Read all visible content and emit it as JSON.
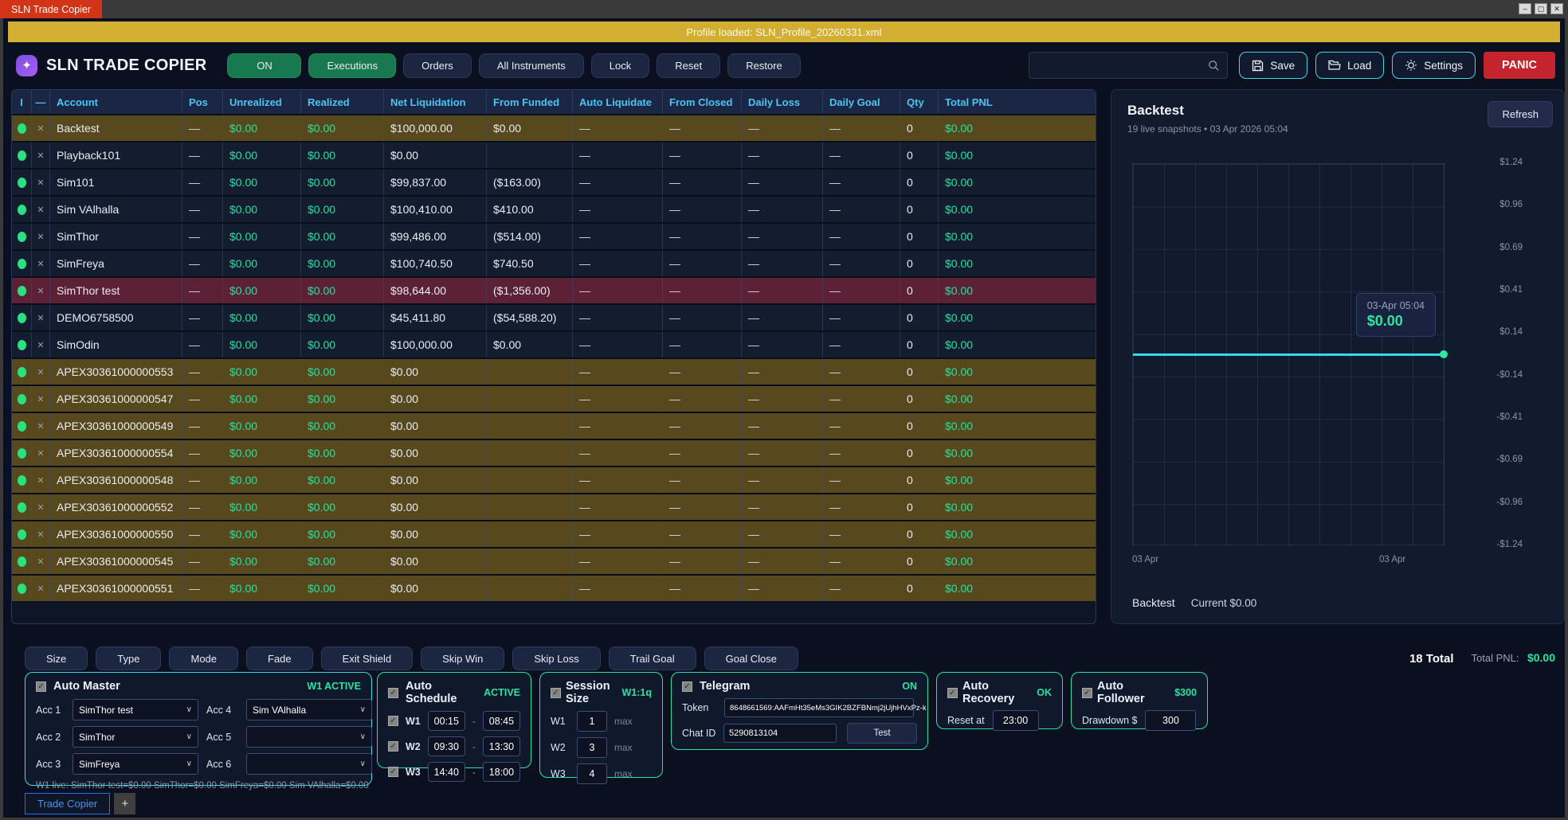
{
  "titlebar": {
    "app_tab": "SLN Trade Copier",
    "minimize": "–",
    "maximize": "▢",
    "close": "✕"
  },
  "banner": {
    "text": "Profile loaded: SLN_Profile_20260331.xml"
  },
  "toolbar": {
    "logo_glyph": "✦",
    "title": "SLN TRADE COPIER",
    "on": "ON",
    "executions": "Executions",
    "orders": "Orders",
    "all_instruments": "All Instruments",
    "lock": "Lock",
    "reset": "Reset",
    "restore": "Restore",
    "save": "Save",
    "load": "Load",
    "settings": "Settings",
    "panic": "PANIC"
  },
  "table": {
    "columns": [
      "I",
      "—",
      "Account",
      "Pos",
      "Unrealized",
      "Realized",
      "Net Liquidation",
      "From Funded",
      "Auto Liquidate",
      "From Closed",
      "Daily Loss",
      "Daily Goal",
      "Qty",
      "Total PNL"
    ],
    "close_glyph": "✕",
    "rows": [
      {
        "name": "Backtest",
        "pos": "—",
        "unrealized": "$0.00",
        "realized": "$0.00",
        "net_liq": "$100,000.00",
        "from_funded": "$0.00",
        "auto_liq": "—",
        "from_closed": "—",
        "daily_loss": "—",
        "daily_goal": "—",
        "qty": "0",
        "total_pnl": "$0.00",
        "highlight": "olive"
      },
      {
        "name": "Playback101",
        "pos": "—",
        "unrealized": "$0.00",
        "realized": "$0.00",
        "net_liq": "$0.00",
        "from_funded": "",
        "auto_liq": "—",
        "from_closed": "—",
        "daily_loss": "—",
        "daily_goal": "—",
        "qty": "0",
        "total_pnl": "$0.00",
        "highlight": "none"
      },
      {
        "name": "Sim101",
        "pos": "—",
        "unrealized": "$0.00",
        "realized": "$0.00",
        "net_liq": "$99,837.00",
        "from_funded": "($163.00)",
        "auto_liq": "—",
        "from_closed": "—",
        "daily_loss": "—",
        "daily_goal": "—",
        "qty": "0",
        "total_pnl": "$0.00",
        "highlight": "none"
      },
      {
        "name": "Sim VAlhalla",
        "pos": "—",
        "unrealized": "$0.00",
        "realized": "$0.00",
        "net_liq": "$100,410.00",
        "from_funded": "$410.00",
        "auto_liq": "—",
        "from_closed": "—",
        "daily_loss": "—",
        "daily_goal": "—",
        "qty": "0",
        "total_pnl": "$0.00",
        "highlight": "none"
      },
      {
        "name": "SimThor",
        "pos": "—",
        "unrealized": "$0.00",
        "realized": "$0.00",
        "net_liq": "$99,486.00",
        "from_funded": "($514.00)",
        "auto_liq": "—",
        "from_closed": "—",
        "daily_loss": "—",
        "daily_goal": "—",
        "qty": "0",
        "total_pnl": "$0.00",
        "highlight": "none"
      },
      {
        "name": "SimFreya",
        "pos": "—",
        "unrealized": "$0.00",
        "realized": "$0.00",
        "net_liq": "$100,740.50",
        "from_funded": "$740.50",
        "auto_liq": "—",
        "from_closed": "—",
        "daily_loss": "—",
        "daily_goal": "—",
        "qty": "0",
        "total_pnl": "$0.00",
        "highlight": "none"
      },
      {
        "name": "SimThor test",
        "pos": "—",
        "unrealized": "$0.00",
        "realized": "$0.00",
        "net_liq": "$98,644.00",
        "from_funded": "($1,356.00)",
        "auto_liq": "—",
        "from_closed": "—",
        "daily_loss": "—",
        "daily_goal": "—",
        "qty": "0",
        "total_pnl": "$0.00",
        "highlight": "maroon"
      },
      {
        "name": "DEMO6758500",
        "pos": "—",
        "unrealized": "$0.00",
        "realized": "$0.00",
        "net_liq": "$45,411.80",
        "from_funded": "($54,588.20)",
        "auto_liq": "—",
        "from_closed": "—",
        "daily_loss": "—",
        "daily_goal": "—",
        "qty": "0",
        "total_pnl": "$0.00",
        "highlight": "none"
      },
      {
        "name": "SimOdin",
        "pos": "—",
        "unrealized": "$0.00",
        "realized": "$0.00",
        "net_liq": "$100,000.00",
        "from_funded": "$0.00",
        "auto_liq": "—",
        "from_closed": "—",
        "daily_loss": "—",
        "daily_goal": "—",
        "qty": "0",
        "total_pnl": "$0.00",
        "highlight": "none"
      },
      {
        "name": "APEX30361000000553",
        "pos": "—",
        "unrealized": "$0.00",
        "realized": "$0.00",
        "net_liq": "$0.00",
        "from_funded": "",
        "auto_liq": "—",
        "from_closed": "—",
        "daily_loss": "—",
        "daily_goal": "—",
        "qty": "0",
        "total_pnl": "$0.00",
        "highlight": "olive"
      },
      {
        "name": "APEX30361000000547",
        "pos": "—",
        "unrealized": "$0.00",
        "realized": "$0.00",
        "net_liq": "$0.00",
        "from_funded": "",
        "auto_liq": "—",
        "from_closed": "—",
        "daily_loss": "—",
        "daily_goal": "—",
        "qty": "0",
        "total_pnl": "$0.00",
        "highlight": "olive"
      },
      {
        "name": "APEX30361000000549",
        "pos": "—",
        "unrealized": "$0.00",
        "realized": "$0.00",
        "net_liq": "$0.00",
        "from_funded": "",
        "auto_liq": "—",
        "from_closed": "—",
        "daily_loss": "—",
        "daily_goal": "—",
        "qty": "0",
        "total_pnl": "$0.00",
        "highlight": "olive"
      },
      {
        "name": "APEX30361000000554",
        "pos": "—",
        "unrealized": "$0.00",
        "realized": "$0.00",
        "net_liq": "$0.00",
        "from_funded": "",
        "auto_liq": "—",
        "from_closed": "—",
        "daily_loss": "—",
        "daily_goal": "—",
        "qty": "0",
        "total_pnl": "$0.00",
        "highlight": "olive"
      },
      {
        "name": "APEX30361000000548",
        "pos": "—",
        "unrealized": "$0.00",
        "realized": "$0.00",
        "net_liq": "$0.00",
        "from_funded": "",
        "auto_liq": "—",
        "from_closed": "—",
        "daily_loss": "—",
        "daily_goal": "—",
        "qty": "0",
        "total_pnl": "$0.00",
        "highlight": "olive"
      },
      {
        "name": "APEX30361000000552",
        "pos": "—",
        "unrealized": "$0.00",
        "realized": "$0.00",
        "net_liq": "$0.00",
        "from_funded": "",
        "auto_liq": "—",
        "from_closed": "—",
        "daily_loss": "—",
        "daily_goal": "—",
        "qty": "0",
        "total_pnl": "$0.00",
        "highlight": "olive"
      },
      {
        "name": "APEX30361000000550",
        "pos": "—",
        "unrealized": "$0.00",
        "realized": "$0.00",
        "net_liq": "$0.00",
        "from_funded": "",
        "auto_liq": "—",
        "from_closed": "—",
        "daily_loss": "—",
        "daily_goal": "—",
        "qty": "0",
        "total_pnl": "$0.00",
        "highlight": "olive"
      },
      {
        "name": "APEX30361000000545",
        "pos": "—",
        "unrealized": "$0.00",
        "realized": "$0.00",
        "net_liq": "$0.00",
        "from_funded": "",
        "auto_liq": "—",
        "from_closed": "—",
        "daily_loss": "—",
        "daily_goal": "—",
        "qty": "0",
        "total_pnl": "$0.00",
        "highlight": "olive"
      },
      {
        "name": "APEX30361000000551",
        "pos": "—",
        "unrealized": "$0.00",
        "realized": "$0.00",
        "net_liq": "$0.00",
        "from_funded": "",
        "auto_liq": "—",
        "from_closed": "—",
        "daily_loss": "—",
        "daily_goal": "—",
        "qty": "0",
        "total_pnl": "$0.00",
        "highlight": "olive"
      }
    ]
  },
  "chart_panel": {
    "title": "Backtest",
    "subtitle": "19 live snapshots • 03 Apr 2026 05:04",
    "refresh": "Refresh",
    "tooltip_time": "03-Apr 05:04",
    "tooltip_value": "$0.00",
    "legend_name": "Backtest",
    "legend_current": "Current $0.00"
  },
  "chart_data": {
    "type": "line",
    "title": "Backtest",
    "snapshots": 19,
    "series": [
      {
        "name": "Backtest",
        "values": [
          0,
          0,
          0,
          0,
          0,
          0,
          0,
          0,
          0,
          0,
          0,
          0,
          0,
          0,
          0,
          0,
          0,
          0,
          0
        ]
      }
    ],
    "x_labels": [
      "03 Apr",
      "03 Apr"
    ],
    "y_ticks": [
      "$1.24",
      "$0.96",
      "$0.69",
      "$0.41",
      "$0.14",
      "-$0.14",
      "-$0.41",
      "-$0.69",
      "-$0.96",
      "-$1.24"
    ],
    "ylim": [
      -1.24,
      1.24
    ],
    "grid": true,
    "line_color": "#3adbe9",
    "marker_color": "#2ee6a0",
    "legend_position": "bottom",
    "tooltip": {
      "time": "03-Apr 05:04",
      "value": "$0.00"
    }
  },
  "footer": {
    "buttons": [
      "Size",
      "Type",
      "Mode",
      "Fade",
      "Exit Shield",
      "Skip Win",
      "Skip Loss",
      "Trail Goal",
      "Goal Close"
    ],
    "total": "18 Total",
    "total_pnl_label": "Total PNL:",
    "total_pnl_value": "$0.00"
  },
  "panels": {
    "auto_master": {
      "title": "Auto Master",
      "status": "W1 ACTIVE",
      "accounts": [
        {
          "label": "Acc 1",
          "value": "SimThor test"
        },
        {
          "label": "Acc 4",
          "value": "Sim VAlhalla"
        },
        {
          "label": "Acc 2",
          "value": "SimThor"
        },
        {
          "label": "Acc 5",
          "value": ""
        },
        {
          "label": "Acc 3",
          "value": "SimFreya"
        },
        {
          "label": "Acc 6",
          "value": ""
        }
      ],
      "footer": "W1 live: SimThor test=$0.00  SimThor=$0.00  SimFreya=$0.00  Sim VAlhalla=$0.00"
    },
    "auto_schedule": {
      "title": "Auto Schedule",
      "status": "ACTIVE",
      "windows": [
        {
          "label": "W1",
          "start": "00:15",
          "end": "08:45"
        },
        {
          "label": "W2",
          "start": "09:30",
          "end": "13:30"
        },
        {
          "label": "W3",
          "start": "14:40",
          "end": "18:00"
        }
      ]
    },
    "session_size": {
      "title": "Session Size",
      "status": "W1:1q",
      "rows": [
        {
          "label": "W1",
          "value": "1",
          "suffix": "max"
        },
        {
          "label": "W2",
          "value": "3",
          "suffix": "max"
        },
        {
          "label": "W3",
          "value": "4",
          "suffix": "max"
        }
      ]
    },
    "telegram": {
      "title": "Telegram",
      "status": "ON",
      "token_label": "Token",
      "token": "8648661569:AAFmHt35eMs3GIK2BZFBNmj2jUjhHVxPz-k",
      "chat_label": "Chat ID",
      "chat_id": "5290813104",
      "test": "Test"
    },
    "auto_recovery": {
      "title": "Auto Recovery",
      "status": "OK",
      "label": "Reset at",
      "value": "23:00"
    },
    "auto_follower": {
      "title": "Auto Follower",
      "status": "$300",
      "label": "Drawdown $",
      "value": "300"
    }
  },
  "tabs": {
    "active": "Trade Copier",
    "add": "+"
  },
  "colors": {
    "banner_yellow": "#d2ae31",
    "tab_red": "#d23417",
    "panic_red": "#c4252c",
    "accent_green": "#2be3a1",
    "accent_cyan": "#36dfe4",
    "header_blue": "#49c5f2",
    "money_green": "#22e3a0",
    "row_olive": "#57491d",
    "row_maroon": "#5c2134",
    "on_green": "#17794d"
  }
}
